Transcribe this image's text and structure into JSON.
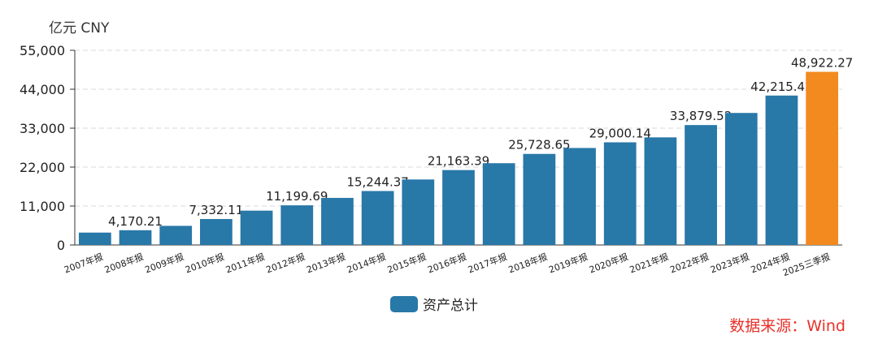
{
  "chart_data": {
    "type": "bar",
    "unit_label": "亿元  CNY",
    "ylim": [
      0,
      55000
    ],
    "yticks": [
      "0",
      "11,000",
      "22,000",
      "33,000",
      "44,000",
      "55,000"
    ],
    "ytick_values": [
      0,
      11000,
      22000,
      33000,
      44000,
      55000
    ],
    "categories": [
      "2007年报",
      "2008年报",
      "2009年报",
      "2010年报",
      "2011年报",
      "2012年报",
      "2013年报",
      "2014年报",
      "2015年报",
      "2016年报",
      "2017年报",
      "2018年报",
      "2019年报",
      "2020年报",
      "2021年报",
      "2022年报",
      "2023年报",
      "2024年报",
      "2025三季报"
    ],
    "series": [
      {
        "name": "资产总计",
        "values": [
          3500,
          4170.21,
          5400,
          7332.11,
          9700,
          11199.69,
          13300,
          15244.37,
          18500,
          21163.39,
          23100,
          25728.65,
          27400,
          29000.14,
          30400,
          33879.52,
          37300,
          42215.42,
          48922.27
        ]
      }
    ],
    "data_labels": {
      "1": "4,170.21",
      "3": "7,332.11",
      "5": "11,199.69",
      "7": "15,244.37",
      "9": "21,163.39",
      "11": "25,728.65",
      "13": "29,000.14",
      "15": "33,879.52",
      "17": "42,215.42",
      "18": "48,922.27"
    },
    "highlight_index": 18,
    "colors": {
      "bar": "#2878a8",
      "highlight": "#f28a1f",
      "grid": "#d9d9d9",
      "axis": "#333333"
    },
    "grid": true,
    "legend_position": "bottom-center"
  },
  "source": "数据来源：Wind"
}
